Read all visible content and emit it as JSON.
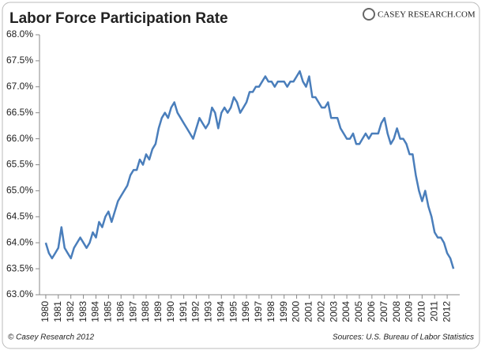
{
  "chart_data": {
    "type": "line",
    "title": "Labor Force Participation Rate",
    "brand": "CASEY RESEARCH.COM",
    "copyright": "© Casey Research 2012",
    "source": "Sources:  U.S. Bureau of Labor Statistics",
    "color": "#4a7ebb",
    "x": [
      1980,
      1980.25,
      1980.5,
      1980.75,
      1981,
      1981.25,
      1981.5,
      1981.75,
      1982,
      1982.25,
      1982.5,
      1982.75,
      1983,
      1983.25,
      1983.5,
      1983.75,
      1984,
      1984.25,
      1984.5,
      1984.75,
      1985,
      1985.25,
      1985.5,
      1985.75,
      1986,
      1986.25,
      1986.5,
      1986.75,
      1987,
      1987.25,
      1987.5,
      1987.75,
      1988,
      1988.25,
      1988.5,
      1988.75,
      1989,
      1989.25,
      1989.5,
      1989.75,
      1990,
      1990.25,
      1990.5,
      1990.75,
      1991,
      1991.25,
      1991.5,
      1991.75,
      1992,
      1992.25,
      1992.5,
      1992.75,
      1993,
      1993.25,
      1993.5,
      1993.75,
      1994,
      1994.25,
      1994.5,
      1994.75,
      1995,
      1995.25,
      1995.5,
      1995.75,
      1996,
      1996.25,
      1996.5,
      1996.75,
      1997,
      1997.25,
      1997.5,
      1997.75,
      1998,
      1998.25,
      1998.5,
      1998.75,
      1999,
      1999.25,
      1999.5,
      1999.75,
      2000,
      2000.25,
      2000.5,
      2000.75,
      2001,
      2001.25,
      2001.5,
      2001.75,
      2002,
      2002.25,
      2002.5,
      2002.75,
      2003,
      2003.25,
      2003.5,
      2003.75,
      2004,
      2004.25,
      2004.5,
      2004.75,
      2005,
      2005.25,
      2005.5,
      2005.75,
      2006,
      2006.25,
      2006.5,
      2006.75,
      2007,
      2007.25,
      2007.5,
      2007.75,
      2008,
      2008.25,
      2008.5,
      2008.75,
      2009,
      2009.25,
      2009.5,
      2009.75,
      2010,
      2010.25,
      2010.5,
      2010.75,
      2011,
      2011.25,
      2011.5,
      2011.75,
      2012,
      2012.25,
      2012.5
    ],
    "values": [
      64.0,
      63.8,
      63.7,
      63.8,
      63.9,
      64.3,
      63.9,
      63.8,
      63.7,
      63.9,
      64.0,
      64.1,
      64.0,
      63.9,
      64.0,
      64.2,
      64.1,
      64.4,
      64.3,
      64.5,
      64.6,
      64.4,
      64.6,
      64.8,
      64.9,
      65.0,
      65.1,
      65.3,
      65.4,
      65.4,
      65.6,
      65.5,
      65.7,
      65.6,
      65.8,
      65.9,
      66.2,
      66.4,
      66.5,
      66.4,
      66.6,
      66.7,
      66.5,
      66.4,
      66.3,
      66.2,
      66.1,
      66.0,
      66.2,
      66.4,
      66.3,
      66.2,
      66.3,
      66.6,
      66.5,
      66.2,
      66.5,
      66.6,
      66.5,
      66.6,
      66.8,
      66.7,
      66.5,
      66.6,
      66.7,
      66.9,
      66.9,
      67.0,
      67.0,
      67.1,
      67.2,
      67.1,
      67.1,
      67.0,
      67.1,
      67.1,
      67.1,
      67.0,
      67.1,
      67.1,
      67.2,
      67.3,
      67.1,
      67.0,
      67.2,
      66.8,
      66.8,
      66.7,
      66.6,
      66.6,
      66.7,
      66.4,
      66.4,
      66.4,
      66.2,
      66.1,
      66.0,
      66.0,
      66.1,
      65.9,
      65.9,
      66.0,
      66.1,
      66.0,
      66.1,
      66.1,
      66.1,
      66.3,
      66.4,
      66.1,
      65.9,
      66.0,
      66.2,
      66.0,
      66.0,
      65.9,
      65.7,
      65.7,
      65.3,
      65.0,
      64.8,
      65.0,
      64.7,
      64.5,
      64.2,
      64.1,
      64.1,
      64.0,
      63.8,
      63.7,
      63.5
    ],
    "xlim": [
      1979.5,
      2013
    ],
    "xticks": [
      1980,
      1981,
      1982,
      1983,
      1984,
      1985,
      1986,
      1987,
      1988,
      1989,
      1990,
      1991,
      1992,
      1993,
      1994,
      1995,
      1996,
      1997,
      1998,
      1999,
      2000,
      2001,
      2002,
      2003,
      2004,
      2005,
      2006,
      2007,
      2008,
      2009,
      2010,
      2011,
      2012
    ],
    "ylim": [
      63,
      68
    ],
    "yticks": [
      {
        "value": 63,
        "label": "63.0%"
      },
      {
        "value": 63.5,
        "label": "63.5%"
      },
      {
        "value": 64,
        "label": "64.0%"
      },
      {
        "value": 64.5,
        "label": "64.5%"
      },
      {
        "value": 65,
        "label": "65.0%"
      },
      {
        "value": 65.5,
        "label": "65.5%"
      },
      {
        "value": 66,
        "label": "66.0%"
      },
      {
        "value": 66.5,
        "label": "66.5%"
      },
      {
        "value": 67,
        "label": "67.0%"
      },
      {
        "value": 67.5,
        "label": "67.5%"
      },
      {
        "value": 68,
        "label": "68.0%"
      }
    ]
  }
}
